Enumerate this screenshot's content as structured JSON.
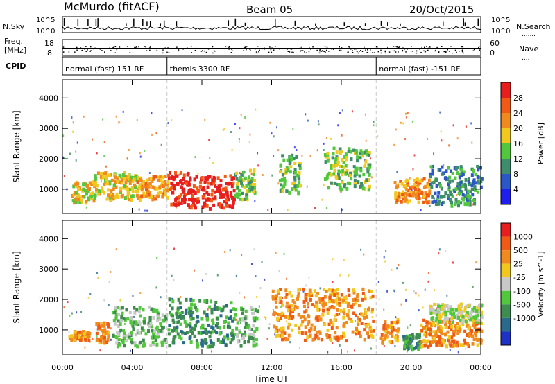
{
  "header": {
    "station": "McMurdo (fitACF)",
    "beam": "Beam 05",
    "date": "20/Oct/2015"
  },
  "strip_labels": {
    "nsky": "N.Sky",
    "nsearch": "N.Search",
    "nsearch_dots": ".......",
    "freq": "Freq.",
    "mhz": "[MHz]",
    "nave": "Nave",
    "nave_dots": "....",
    "cpid": "CPID"
  },
  "noise_ticks": {
    "left": [
      "10^5",
      "10^0"
    ],
    "right": [
      "10^5",
      "10^0"
    ]
  },
  "freq_ticks": {
    "left": [
      "18",
      "8"
    ],
    "right": [
      "60",
      "0"
    ]
  },
  "cpid_segments": [
    {
      "label": "normal (fast) 151 RF",
      "start_hour": 0,
      "end_hour": 6
    },
    {
      "label": "themis 3300 RF",
      "start_hour": 6,
      "end_hour": 18
    },
    {
      "label": "normal (fast) -151 RF",
      "start_hour": 18,
      "end_hour": 24
    }
  ],
  "x_axis": {
    "label": "Time UT",
    "ticks": [
      "00:00",
      "04:00",
      "08:00",
      "12:00",
      "16:00",
      "20:00",
      "00:00"
    ]
  },
  "chart_data": [
    {
      "type": "heatmap",
      "title": "",
      "xlabel": "Time UT",
      "ylabel": "Slant Range [km]",
      "xlim_hours": [
        0,
        24
      ],
      "ylim_km": [
        200,
        4600
      ],
      "y_ticks": [
        1000,
        2000,
        3000,
        4000
      ],
      "colorbar": {
        "label": "Power [dB]",
        "ticks": [
          "4",
          "8",
          "12",
          "16",
          "20",
          "24",
          "28"
        ],
        "colors": [
          "#1e1ef0",
          "#2b57c8",
          "#3e8c6c",
          "#52c63d",
          "#f0c81e",
          "#f08a1e",
          "#f05a14",
          "#e81e1e"
        ]
      },
      "regions": [
        {
          "t0": 0.5,
          "t1": 1.8,
          "r0": 600,
          "r1": 1300,
          "level": 4
        },
        {
          "t0": 1.8,
          "t1": 4.2,
          "r0": 700,
          "r1": 1600,
          "level": 4
        },
        {
          "t0": 4.2,
          "t1": 6.0,
          "r0": 700,
          "r1": 1500,
          "level": 5
        },
        {
          "t0": 6.0,
          "t1": 7.2,
          "r0": 500,
          "r1": 1600,
          "level": 7
        },
        {
          "t0": 7.2,
          "t1": 9.8,
          "r0": 400,
          "r1": 1500,
          "level": 7
        },
        {
          "t0": 9.8,
          "t1": 11.0,
          "r0": 700,
          "r1": 1700,
          "level": 3
        },
        {
          "t0": 12.4,
          "t1": 13.6,
          "r0": 900,
          "r1": 2200,
          "level": 3
        },
        {
          "t0": 15.0,
          "t1": 17.6,
          "r0": 1000,
          "r1": 2400,
          "level": 3
        },
        {
          "t0": 19.0,
          "t1": 21.0,
          "r0": 600,
          "r1": 1400,
          "level": 5
        },
        {
          "t0": 21.0,
          "t1": 24.0,
          "r0": 500,
          "r1": 1800,
          "level": 2
        }
      ]
    },
    {
      "type": "heatmap",
      "title": "",
      "xlabel": "Time UT",
      "ylabel": "Slant Range [km]",
      "xlim_hours": [
        0,
        24
      ],
      "ylim_km": [
        200,
        4600
      ],
      "y_ticks": [
        1000,
        2000,
        3000,
        4000
      ],
      "colorbar": {
        "label": "Velocity [m s^-1]",
        "ticks": [
          "1000",
          "500",
          "25",
          "-25",
          "-100",
          "-500",
          "-1000"
        ],
        "colors": [
          "#1e32c8",
          "#2b6a8c",
          "#3e8c50",
          "#52c63d",
          "#c8c8c8",
          "#f0c81e",
          "#f08a1e",
          "#f05a14",
          "#e81e1e"
        ]
      },
      "regions": [
        {
          "t0": 0.3,
          "t1": 1.5,
          "r0": 700,
          "r1": 1000,
          "level": 6
        },
        {
          "t0": 1.8,
          "t1": 2.6,
          "r0": 600,
          "r1": 1300,
          "level": 6
        },
        {
          "t0": 2.8,
          "t1": 6.0,
          "r0": 500,
          "r1": 1800,
          "level": 3
        },
        {
          "t0": 6.0,
          "t1": 9.8,
          "r0": 500,
          "r1": 2100,
          "level": 2
        },
        {
          "t0": 9.8,
          "t1": 11.2,
          "r0": 500,
          "r1": 1800,
          "level": 3
        },
        {
          "t0": 12.0,
          "t1": 17.8,
          "r0": 700,
          "r1": 2400,
          "level": 6
        },
        {
          "t0": 18.2,
          "t1": 19.2,
          "r0": 600,
          "r1": 1400,
          "level": 6
        },
        {
          "t0": 19.5,
          "t1": 20.5,
          "r0": 400,
          "r1": 900,
          "level": 2
        },
        {
          "t0": 20.5,
          "t1": 24.0,
          "r0": 500,
          "r1": 1400,
          "level": 6
        },
        {
          "t0": 21.0,
          "t1": 24.0,
          "r0": 1300,
          "r1": 1900,
          "level": 4
        }
      ]
    }
  ]
}
